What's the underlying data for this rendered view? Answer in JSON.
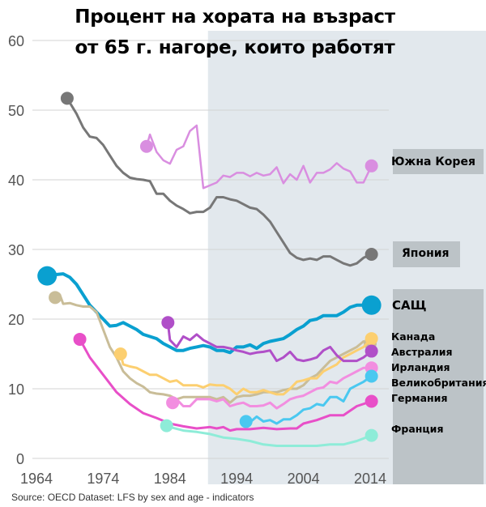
{
  "chart_data": {
    "type": "line",
    "title": "Процент на хората на възраст от 65 г. нагоре, които работят",
    "title_lines": [
      "Процент на хората на възраст",
      "от 65 г. нагоре, които работят"
    ],
    "source": "Source: OECD Dataset: LFS by sex and age - indicators",
    "xlabel": "",
    "ylabel": "",
    "xlim": [
      1964,
      2014
    ],
    "ylim": [
      0,
      60
    ],
    "xticks": [
      "1964",
      "1974",
      "1984",
      "1994",
      "2004",
      "2014"
    ],
    "yticks": [
      "0",
      "10",
      "20",
      "30",
      "40",
      "50",
      "60"
    ],
    "grid": true,
    "shaded_from_year": 1989.7,
    "series": [
      {
        "name": "Южна Корея",
        "color": "#d98ee0",
        "width": 2.5,
        "dot": 8,
        "label_box": true,
        "x": [
          1980.5,
          1981,
          1982,
          1983,
          1984,
          1985,
          1986,
          1987,
          1988,
          1989,
          1990,
          1991,
          1992,
          1993,
          1994,
          1995,
          1996,
          1997,
          1998,
          1999,
          2000,
          2001,
          2002,
          2003,
          2004,
          2005,
          2006,
          2007,
          2008,
          2009,
          2010,
          2011,
          2012,
          2013,
          2014.2
        ],
        "y": [
          44.8,
          46.5,
          44,
          42.8,
          42.3,
          44.3,
          44.8,
          47,
          47.8,
          38.8,
          39.2,
          39.6,
          40.6,
          40.4,
          41,
          41,
          40.5,
          41,
          40.6,
          40.8,
          41.8,
          39.5,
          40.8,
          40,
          42,
          39.6,
          41,
          41,
          41.5,
          42.4,
          41.6,
          41.2,
          39.6,
          39.6,
          42
        ]
      },
      {
        "name": "Япония",
        "color": "#777777",
        "width": 3,
        "dot": 8,
        "label_box": true,
        "x": [
          1968.6,
          1970,
          1971,
          1972,
          1973,
          1974,
          1975,
          1976,
          1977,
          1978,
          1979,
          1980,
          1981,
          1982,
          1983,
          1984,
          1985,
          1986,
          1987,
          1988,
          1989,
          1990,
          1991,
          1992,
          1993,
          1994,
          1995,
          1996,
          1997,
          1998,
          1999,
          2000,
          2001,
          2002,
          2003,
          2004,
          2005,
          2006,
          2007,
          2008,
          2009,
          2010,
          2011,
          2012,
          2013,
          2014.2
        ],
        "y": [
          51.7,
          49.5,
          47.5,
          46.2,
          46,
          45,
          43.5,
          42,
          41,
          40.3,
          40.1,
          40,
          39.8,
          38,
          38,
          37,
          36.3,
          35.8,
          35.2,
          35.4,
          35.4,
          36,
          37.5,
          37.5,
          37.2,
          37,
          36.5,
          36,
          35.8,
          35,
          34,
          32.5,
          31,
          29.5,
          28.8,
          28.5,
          28.7,
          28.5,
          29,
          29,
          28.5,
          28,
          27.7,
          28,
          28.8,
          29.3
        ]
      },
      {
        "name": "САЩ",
        "color": "#0aa0d0",
        "width": 4,
        "dot": 12,
        "x": [
          1965.6,
          1966,
          1968,
          1969,
          1970,
          1971,
          1972,
          1973,
          1974,
          1975,
          1976,
          1977,
          1978,
          1979,
          1980,
          1981,
          1982,
          1983,
          1984,
          1985,
          1986,
          1987,
          1988,
          1989,
          1990,
          1991,
          1992,
          1993,
          1994,
          1995,
          1996,
          1997,
          1998,
          1999,
          2000,
          2001,
          2002,
          2003,
          2004,
          2005,
          2006,
          2007,
          2008,
          2009,
          2010,
          2011,
          2012,
          2013,
          2014.2
        ],
        "y": [
          26.2,
          26.3,
          26.5,
          26,
          25,
          23.5,
          22,
          21,
          20,
          19,
          19.1,
          19.5,
          19,
          18.5,
          17.8,
          17.5,
          17.2,
          16.5,
          16,
          15.5,
          15.5,
          15.8,
          16,
          16.2,
          16,
          15.5,
          15.5,
          15.2,
          16,
          16,
          16.3,
          15.8,
          16.5,
          16.8,
          17,
          17.2,
          17.8,
          18.5,
          19,
          19.8,
          20,
          20.5,
          20.5,
          20.5,
          21,
          21.7,
          22,
          22,
          22
        ]
      },
      {
        "name": "",
        "color": "#c9bd98",
        "width": 3,
        "dot": 8,
        "x": [
          1966.8,
          1967.5,
          1968,
          1969,
          1970,
          1971,
          1972,
          1973,
          1974,
          1975,
          1976,
          1977,
          1978,
          1979,
          1980,
          1981,
          1982,
          1983,
          1984,
          1985,
          1986,
          1987,
          1988,
          1989,
          1990,
          1991,
          1992,
          1993,
          1994,
          1995,
          1996,
          1997,
          1998,
          1999,
          2000,
          2001,
          2002,
          2003,
          2004,
          2005,
          2006,
          2007,
          2008,
          2009,
          2010,
          2011,
          2012,
          2013,
          2014
        ],
        "y": [
          23.1,
          23.5,
          22.2,
          22.3,
          22,
          21.8,
          21.8,
          21,
          18.5,
          16,
          14.5,
          12.5,
          11.5,
          10.8,
          10.3,
          9.5,
          9.3,
          9.2,
          9,
          8.5,
          8.8,
          8.8,
          8.8,
          8.8,
          8.8,
          8.5,
          8.8,
          8,
          8.8,
          9,
          9,
          9.2,
          9.5,
          9.5,
          9.5,
          9.8,
          10,
          10,
          10.5,
          11.5,
          12,
          13,
          14,
          14.5,
          15,
          15.5,
          16,
          16.8,
          16.5
        ]
      },
      {
        "name": "Канада",
        "color": "#fccf70",
        "width": 3,
        "dot": 8,
        "x": [
          1976.6,
          1977,
          1978,
          1979,
          1980,
          1981,
          1982,
          1983,
          1984,
          1985,
          1986,
          1987,
          1988,
          1989,
          1990,
          1991,
          1992,
          1993,
          1994,
          1995,
          1996,
          1997,
          1998,
          1999,
          2000,
          2001,
          2002,
          2003,
          2004,
          2005,
          2006,
          2007,
          2008,
          2009,
          2010,
          2011,
          2012,
          2013,
          2014.2
        ],
        "y": [
          15,
          13.5,
          13.2,
          13,
          12.5,
          12,
          12,
          11.5,
          11,
          11.2,
          10.5,
          10.5,
          10.5,
          10.2,
          10.6,
          10.5,
          10.5,
          10,
          9.2,
          10,
          9.5,
          9.5,
          9.8,
          9.5,
          9.2,
          9.2,
          10,
          11,
          11.2,
          11.5,
          11.5,
          12.5,
          13,
          13.5,
          14.5,
          15,
          15.5,
          16,
          17.2
        ]
      },
      {
        "name": "Австралия",
        "color": "#b04fc8",
        "width": 3,
        "dot": 8,
        "x": [
          1983.7,
          1984,
          1985,
          1986,
          1987,
          1988,
          1989,
          1990,
          1991,
          1992,
          1993,
          1994,
          1995,
          1996,
          1997,
          1998,
          1999,
          2000,
          2001,
          2002,
          2003,
          2004,
          2005,
          2006,
          2007,
          2008,
          2009,
          2010,
          2011,
          2012,
          2013,
          2014.2
        ],
        "y": [
          19.5,
          17,
          16,
          17.5,
          17,
          17.8,
          17,
          16.5,
          16,
          16,
          15.8,
          15.5,
          15.3,
          15,
          15.2,
          15.3,
          15.5,
          14,
          14.5,
          15.3,
          14.2,
          14,
          14.2,
          14.5,
          15.5,
          16,
          14.8,
          14,
          14,
          14,
          14.5,
          15.4
        ]
      },
      {
        "name": "Ирландия",
        "color": "#f28ee0",
        "width": 3,
        "dot": 8,
        "x": [
          1984.4,
          1985,
          1986,
          1987,
          1988,
          1989,
          1990,
          1991,
          1992,
          1993,
          1994,
          1995,
          1996,
          1997,
          1998,
          1999,
          2000,
          2001,
          2002,
          2003,
          2004,
          2005,
          2006,
          2007,
          2008,
          2009,
          2010,
          2011,
          2012,
          2013,
          2014.2
        ],
        "y": [
          8,
          8.5,
          7.5,
          7.5,
          8.5,
          8.5,
          8.5,
          8.2,
          8.5,
          7.5,
          7.8,
          8,
          7.5,
          7.5,
          7.6,
          8,
          7.2,
          7.8,
          8.5,
          8.8,
          9,
          9.5,
          10,
          10.2,
          11,
          10.8,
          11.5,
          12,
          12.5,
          13,
          13
        ]
      },
      {
        "name": "Великобритания",
        "color": "#4ac8f0",
        "width": 3,
        "dot": 8,
        "x": [
          1995.4,
          1996,
          1997,
          1998,
          1999,
          2000,
          2001,
          2002,
          2003,
          2004,
          2005,
          2006,
          2007,
          2008,
          2009,
          2010,
          2011,
          2012,
          2013,
          2014.2
        ],
        "y": [
          5.3,
          5.2,
          6,
          5.3,
          5.5,
          5,
          5.6,
          5.6,
          6.2,
          7,
          7.2,
          7.8,
          7.6,
          8.8,
          8.8,
          8.2,
          10,
          10.5,
          11,
          11.8
        ]
      },
      {
        "name": "Германия",
        "color": "#e84fc8",
        "width": 3,
        "dot": 8,
        "x": [
          1970.5,
          1972,
          1974,
          1976,
          1978,
          1980,
          1982,
          1984,
          1986,
          1988,
          1990,
          1991,
          1992,
          1993,
          1994,
          1996,
          1998,
          2000,
          2002,
          2003,
          2004,
          2006,
          2008,
          2010,
          2012,
          2014.2
        ],
        "y": [
          17.1,
          14.5,
          12,
          9.5,
          7.8,
          6.5,
          5.8,
          5,
          4.6,
          4.3,
          4.5,
          4.3,
          4.5,
          4,
          4.2,
          4.2,
          4.4,
          4.2,
          4.3,
          4.3,
          5,
          5.5,
          6.2,
          6.2,
          7.5,
          8.2
        ]
      },
      {
        "name": "Франция",
        "color": "#8eecd8",
        "width": 3,
        "dot": 8,
        "x": [
          1983.5,
          1984,
          1986,
          1988,
          1990,
          1992,
          1994,
          1996,
          1998,
          2000,
          2002,
          2004,
          2006,
          2008,
          2010,
          2012,
          2014.2
        ],
        "y": [
          4.7,
          4.5,
          4,
          3.8,
          3.5,
          3,
          2.8,
          2.5,
          2,
          1.8,
          1.8,
          1.8,
          1.8,
          2,
          2,
          2.5,
          3.3
        ]
      }
    ]
  }
}
